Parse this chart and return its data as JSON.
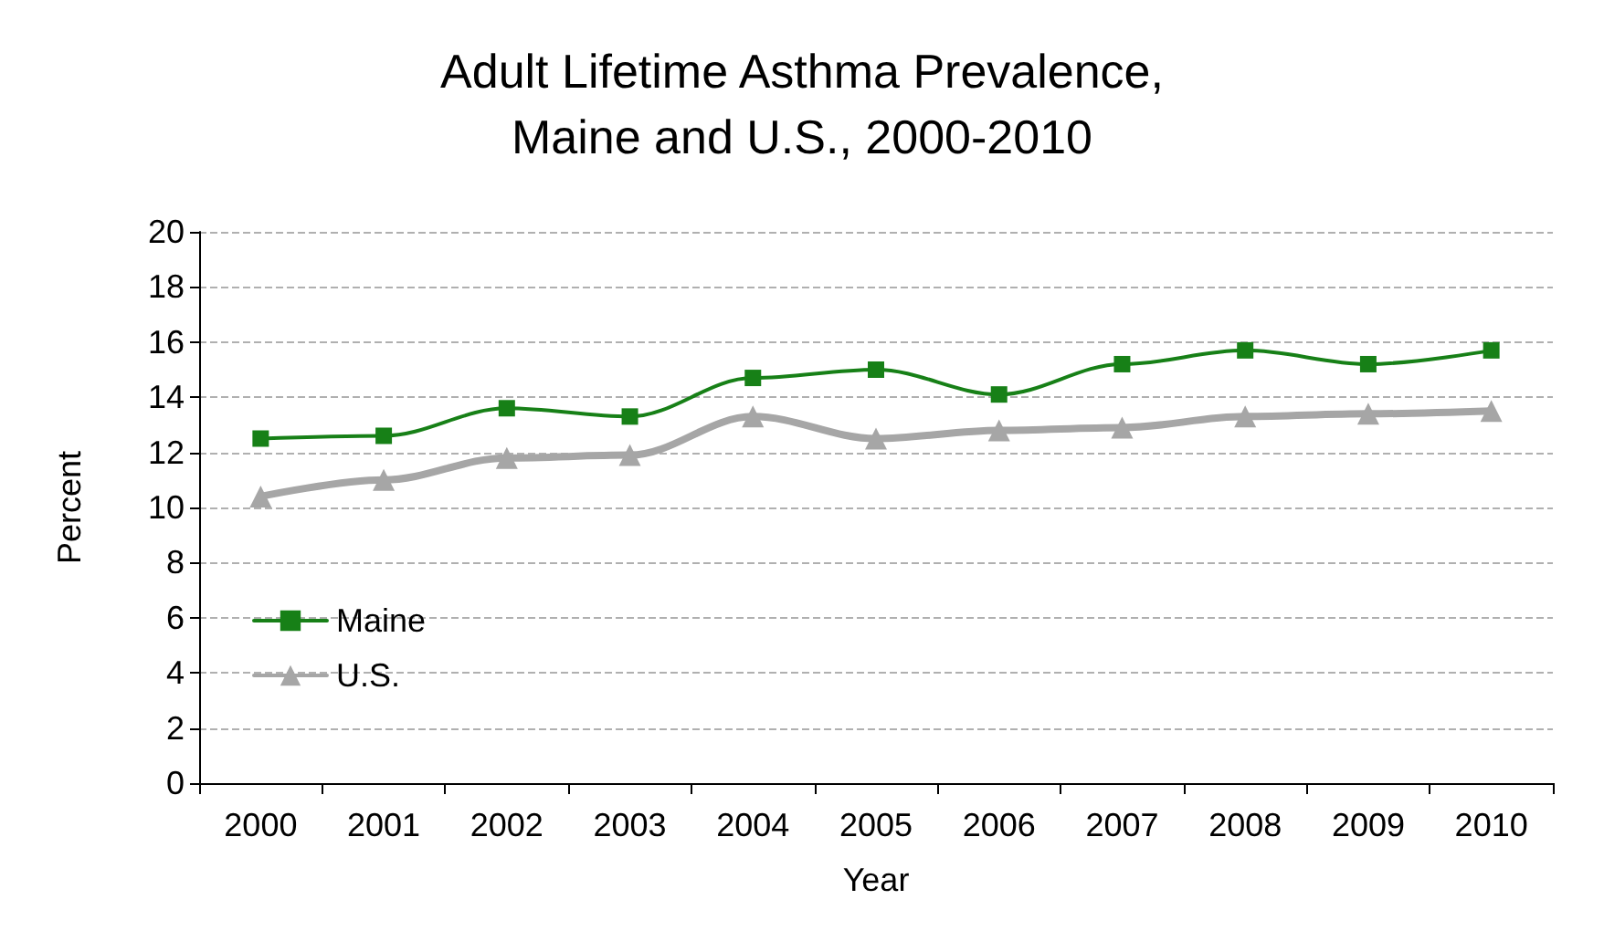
{
  "chart_data": {
    "type": "line",
    "title": "Adult Lifetime Asthma Prevalence,\nMaine and U.S., 2000-2010",
    "xlabel": "Year",
    "ylabel": "Percent",
    "categories": [
      "2000",
      "2001",
      "2002",
      "2003",
      "2004",
      "2005",
      "2006",
      "2007",
      "2008",
      "2009",
      "2010"
    ],
    "series": [
      {
        "name": "Maine",
        "color": "#178017",
        "marker": "square",
        "values": [
          12.5,
          12.6,
          13.6,
          13.3,
          14.7,
          15.0,
          14.1,
          15.2,
          15.7,
          15.2,
          15.7
        ]
      },
      {
        "name": "U.S.",
        "color": "#a6a6a6",
        "marker": "triangle",
        "values": [
          10.4,
          11.0,
          11.8,
          11.9,
          13.3,
          12.5,
          12.8,
          12.9,
          13.3,
          13.4,
          13.5
        ]
      }
    ],
    "ylim": [
      0,
      20
    ],
    "yticks": [
      0,
      2,
      4,
      6,
      8,
      10,
      12,
      14,
      16,
      18,
      20
    ],
    "grid": "y",
    "legend": "bottom left"
  }
}
